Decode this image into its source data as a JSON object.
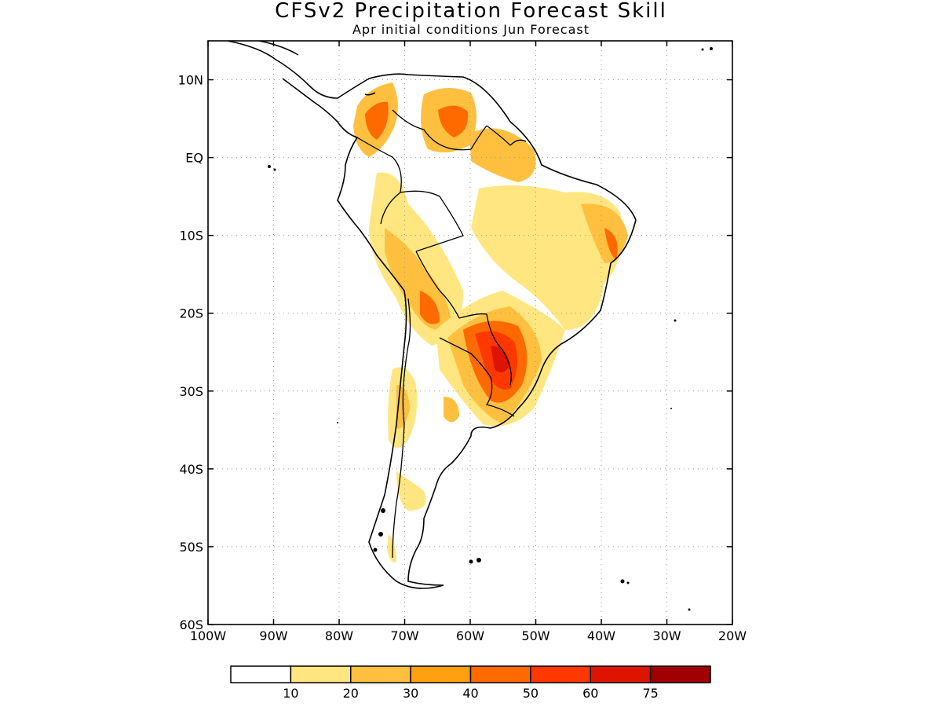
{
  "title": "CFSv2 Precipitation Forecast Skill",
  "subtitle": "Apr initial conditions  Jun Forecast",
  "map": {
    "region": "South America",
    "lon_range": [
      -100,
      -20
    ],
    "lat_range": [
      -60,
      15
    ],
    "lat_labels": [
      "10N",
      "EQ",
      "10S",
      "20S",
      "30S",
      "40S",
      "50S",
      "60S"
    ],
    "lon_labels": [
      "100W",
      "90W",
      "80W",
      "70W",
      "60W",
      "50W",
      "40W",
      "30W",
      "20W"
    ],
    "grid": "dotted"
  },
  "legend": {
    "tick_labels": [
      "10",
      "20",
      "30",
      "40",
      "50",
      "60",
      "75"
    ],
    "colors": [
      "#ffffff",
      "#ffe680",
      "#ffc040",
      "#ffa010",
      "#ff6a00",
      "#ff3800",
      "#dd1400",
      "#a00000"
    ]
  },
  "chart_data": {
    "type": "heatmap",
    "title": "CFSv2 Precipitation Forecast Skill",
    "subtitle": "Apr initial conditions  Jun Forecast",
    "xlabel": "",
    "ylabel": "",
    "xlim": [
      -100,
      -20
    ],
    "ylim": [
      -60,
      15
    ],
    "levels": [
      10,
      20,
      30,
      40,
      50,
      60,
      75
    ],
    "regions": [
      {
        "lon": -74,
        "lat": 6,
        "value": 45
      },
      {
        "lon": -63,
        "lat": 7,
        "value": 50
      },
      {
        "lon": -53,
        "lat": 1,
        "value": 30
      },
      {
        "lon": -55,
        "lat": -24,
        "value": 60
      },
      {
        "lon": -66,
        "lat": -18,
        "value": 35
      },
      {
        "lon": -37,
        "lat": -10,
        "value": 45
      },
      {
        "lon": -65,
        "lat": -25,
        "value": 30
      },
      {
        "lon": -70,
        "lat": -32,
        "value": 30
      },
      {
        "lon": -47,
        "lat": -5,
        "value": 20
      }
    ]
  }
}
